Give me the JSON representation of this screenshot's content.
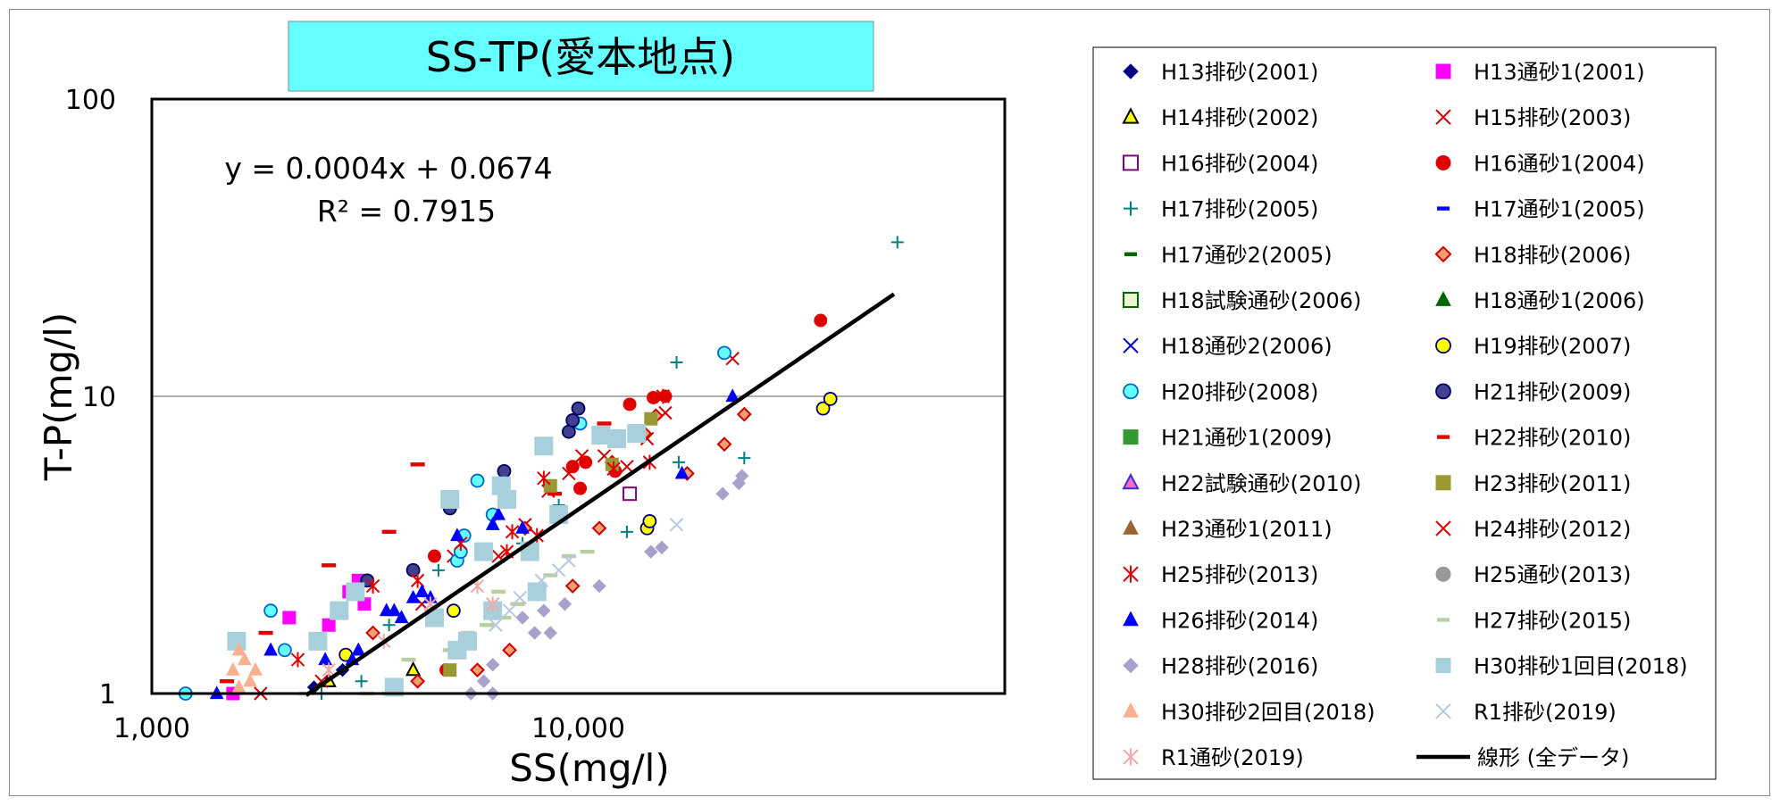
{
  "chart_data": {
    "type": "scatter",
    "title": "SS-TP(愛本地点)",
    "xlabel": "SS(mg/l)",
    "ylabel": "T-P(mg/l)",
    "x_scale": "log",
    "y_scale": "log",
    "xlim": [
      1000,
      100000
    ],
    "ylim": [
      1,
      100
    ],
    "x_ticks": [
      "1,000",
      "10,000"
    ],
    "y_ticks": [
      "1",
      "10",
      "100"
    ],
    "grid": "horizontal",
    "legend_position": "right",
    "trendline": {
      "name": "線形 (全データ)",
      "equation": "y = 0.0004x + 0.0674",
      "r2": "R² = 0.7915",
      "slope": 0.0004,
      "intercept": 0.0674,
      "x_range": [
        2300,
        55000
      ]
    },
    "series": [
      {
        "name": "H13排砂(2001)",
        "marker": "diamond",
        "color": "#000080",
        "points": [
          [
            2400,
            1.05
          ],
          [
            2800,
            1.2
          ]
        ]
      },
      {
        "name": "H13通砂1(2001)",
        "marker": "square",
        "color": "#ff00ff",
        "points": [
          [
            1550,
            1.0
          ],
          [
            2100,
            1.8
          ],
          [
            2600,
            1.7
          ],
          [
            2900,
            2.2
          ],
          [
            3050,
            2.4
          ],
          [
            3150,
            2.0
          ]
        ]
      },
      {
        "name": "H14排砂(2002)",
        "marker": "triangle",
        "color": "#ffff00",
        "stroke": "#000000",
        "points": [
          [
            4100,
            1.2
          ],
          [
            2600,
            1.1
          ]
        ]
      },
      {
        "name": "H15排砂(2003)",
        "marker": "x",
        "color": "#cc0000",
        "points": [
          [
            1800,
            1.0
          ],
          [
            2500,
            1.1
          ],
          [
            4300,
            2.0
          ],
          [
            5100,
            2.9
          ],
          [
            6500,
            2.9
          ],
          [
            7500,
            3.7
          ],
          [
            8500,
            4.8
          ],
          [
            9500,
            5.5
          ],
          [
            10200,
            6.3
          ],
          [
            11500,
            6.3
          ],
          [
            13000,
            5.8
          ],
          [
            14500,
            7.2
          ],
          [
            16000,
            8.8
          ],
          [
            23000,
            13.4
          ]
        ]
      },
      {
        "name": "H16排砂(2004)",
        "marker": "square-open",
        "color": "#800080",
        "points": [
          [
            13200,
            4.7
          ]
        ]
      },
      {
        "name": "H16通砂1(2004)",
        "marker": "circle",
        "color": "#e00000",
        "points": [
          [
            4600,
            2.9
          ],
          [
            4900,
            1.2
          ],
          [
            9700,
            5.8
          ],
          [
            10100,
            4.9
          ],
          [
            10400,
            6.0
          ],
          [
            12200,
            5.6
          ],
          [
            13200,
            9.4
          ],
          [
            15000,
            9.9
          ],
          [
            16000,
            10.0
          ],
          [
            37000,
            18.0
          ]
        ]
      },
      {
        "name": "H17排砂(2005)",
        "marker": "plus",
        "color": "#008080",
        "points": [
          [
            2500,
            1.0
          ],
          [
            3100,
            1.1
          ],
          [
            3600,
            1.7
          ],
          [
            4700,
            2.6
          ],
          [
            7400,
            3.2
          ],
          [
            9000,
            4.3
          ],
          [
            13000,
            3.5
          ],
          [
            13500,
            7.6
          ],
          [
            17000,
            13.0
          ],
          [
            17200,
            6.0
          ],
          [
            24500,
            6.2
          ],
          [
            56000,
            33.0
          ]
        ]
      },
      {
        "name": "H17通砂1(2005)",
        "marker": "dash",
        "color": "#0000ff",
        "points": []
      },
      {
        "name": "H17通砂2(2005)",
        "marker": "dash",
        "color": "#006600",
        "points": []
      },
      {
        "name": "H18排砂(2006)",
        "marker": "diamond-outlined",
        "color": "#f0a070",
        "stroke": "#cc0000",
        "points": [
          [
            3300,
            1.6
          ],
          [
            4200,
            1.1
          ],
          [
            5800,
            1.2
          ],
          [
            6900,
            1.4
          ],
          [
            7500,
            3.6
          ],
          [
            9700,
            2.3
          ],
          [
            11200,
            3.6
          ],
          [
            12000,
            6.0
          ],
          [
            14300,
            7.5
          ],
          [
            15200,
            8.6
          ],
          [
            18000,
            5.5
          ],
          [
            22000,
            6.9
          ],
          [
            24500,
            8.7
          ]
        ]
      },
      {
        "name": "H18試験通砂(2006)",
        "marker": "square-open",
        "color": "#e8f5d0",
        "stroke": "#006600",
        "points": []
      },
      {
        "name": "H18通砂1(2006)",
        "marker": "triangle",
        "color": "#006600",
        "points": []
      },
      {
        "name": "H18通砂2(2006)",
        "marker": "x",
        "color": "#0000cc",
        "points": []
      },
      {
        "name": "H19排砂(2007)",
        "marker": "circle",
        "color": "#ffff00",
        "stroke": "#000080",
        "points": [
          [
            2850,
            1.35
          ],
          [
            5100,
            1.9
          ],
          [
            14500,
            3.6
          ],
          [
            14700,
            3.8
          ],
          [
            37500,
            9.1
          ],
          [
            39000,
            9.8
          ]
        ]
      },
      {
        "name": "H20排砂(2008)",
        "marker": "circle",
        "color": "#66ffff",
        "stroke": "#0066cc",
        "points": [
          [
            1200,
            1.0
          ],
          [
            1900,
            1.9
          ],
          [
            2050,
            1.4
          ],
          [
            5200,
            2.8
          ],
          [
            5300,
            3.0
          ],
          [
            5400,
            3.4
          ],
          [
            5800,
            5.2
          ],
          [
            6300,
            4.0
          ],
          [
            10100,
            8.1
          ],
          [
            22000,
            14.0
          ]
        ]
      },
      {
        "name": "H21排砂(2009)",
        "marker": "circle",
        "color": "#404090",
        "stroke": "#000060",
        "points": [
          [
            3200,
            2.4
          ],
          [
            4100,
            2.6
          ],
          [
            5000,
            4.2
          ],
          [
            6700,
            5.6
          ],
          [
            9500,
            7.6
          ],
          [
            9700,
            8.3
          ],
          [
            10000,
            9.1
          ]
        ]
      },
      {
        "name": "H21通砂1(2009)",
        "marker": "square",
        "color": "#339933",
        "points": []
      },
      {
        "name": "H22排砂(2010)",
        "marker": "dash",
        "color": "#e00000",
        "points": [
          [
            1500,
            1.1
          ],
          [
            1850,
            1.6
          ],
          [
            2600,
            2.7
          ],
          [
            3600,
            3.5
          ],
          [
            4200,
            5.9
          ],
          [
            8800,
            4.7
          ],
          [
            11500,
            8.1
          ]
        ]
      },
      {
        "name": "H22試験通砂(2010)",
        "marker": "triangle",
        "color": "#ff66cc",
        "stroke": "#3333cc",
        "points": []
      },
      {
        "name": "H23排砂(2011)",
        "marker": "square",
        "color": "#999933",
        "points": [
          [
            5000,
            1.2
          ],
          [
            8600,
            5.0
          ],
          [
            12000,
            5.9
          ],
          [
            14800,
            8.4
          ]
        ]
      },
      {
        "name": "H23通砂1(2011)",
        "marker": "triangle",
        "color": "#996633",
        "points": []
      },
      {
        "name": "H24排砂(2012)",
        "marker": "x",
        "color": "#e00000",
        "points": []
      },
      {
        "name": "H25排砂(2013)",
        "marker": "asterisk",
        "color": "#e00000",
        "points": [
          [
            2200,
            1.3
          ],
          [
            3300,
            2.3
          ],
          [
            4200,
            2.4
          ],
          [
            5300,
            3.2
          ],
          [
            6800,
            3.0
          ],
          [
            7000,
            3.5
          ],
          [
            8000,
            3.4
          ],
          [
            8300,
            5.3
          ],
          [
            12100,
            5.7
          ],
          [
            14700,
            6.0
          ],
          [
            15800,
            10.0
          ]
        ]
      },
      {
        "name": "H25通砂(2013)",
        "marker": "circle",
        "color": "#999999",
        "points": []
      },
      {
        "name": "H26排砂(2014)",
        "marker": "triangle",
        "color": "#0000ff",
        "points": [
          [
            1420,
            1.0
          ],
          [
            1900,
            1.4
          ],
          [
            2550,
            1.3
          ],
          [
            2950,
            1.3
          ],
          [
            3050,
            1.4
          ],
          [
            3550,
            1.9
          ],
          [
            3700,
            1.9
          ],
          [
            3850,
            1.8
          ],
          [
            4100,
            2.1
          ],
          [
            4300,
            2.2
          ],
          [
            4500,
            2.1
          ],
          [
            5200,
            3.4
          ],
          [
            6300,
            3.7
          ],
          [
            6500,
            4.0
          ],
          [
            7400,
            3.6
          ],
          [
            17500,
            5.5
          ],
          [
            23000,
            10.0
          ]
        ]
      },
      {
        "name": "H27排砂(2015)",
        "marker": "dash",
        "color": "#b8d0a0",
        "points": [
          [
            2300,
            1.0
          ],
          [
            3200,
            1.0
          ],
          [
            3600,
            1.0
          ],
          [
            4000,
            1.3
          ],
          [
            5000,
            1.4
          ],
          [
            5500,
            1.6
          ],
          [
            6100,
            1.7
          ],
          [
            6700,
            1.8
          ],
          [
            7200,
            2.0
          ],
          [
            8000,
            2.2
          ],
          [
            8600,
            2.5
          ],
          [
            9500,
            2.9
          ],
          [
            10500,
            3.0
          ],
          [
            7600,
            3.2
          ],
          [
            6500,
            2.2
          ]
        ]
      },
      {
        "name": "H28排砂(2016)",
        "marker": "diamond",
        "color": "#aaa0cc",
        "points": [
          [
            5600,
            1.0
          ],
          [
            6000,
            1.1
          ],
          [
            6300,
            1.25
          ],
          [
            6300,
            1.0
          ],
          [
            7400,
            1.8
          ],
          [
            7900,
            1.6
          ],
          [
            8300,
            1.9
          ],
          [
            8600,
            1.6
          ],
          [
            9300,
            2.0
          ],
          [
            11200,
            2.3
          ],
          [
            14800,
            3.0
          ],
          [
            15700,
            3.1
          ],
          [
            21800,
            4.7
          ],
          [
            23800,
            5.1
          ],
          [
            24200,
            5.4
          ]
        ]
      },
      {
        "name": "H30排砂1回目(2018)",
        "marker": "square",
        "color": "#a8d0dc",
        "points": [
          [
            1580,
            1.5
          ],
          [
            2450,
            1.5
          ],
          [
            2750,
            1.9
          ],
          [
            3000,
            2.2
          ],
          [
            3700,
            1.05
          ],
          [
            4600,
            1.8
          ],
          [
            5000,
            4.5
          ],
          [
            5200,
            1.4
          ],
          [
            5500,
            1.5
          ],
          [
            6000,
            3.0
          ],
          [
            6300,
            1.9
          ],
          [
            6600,
            5.0
          ],
          [
            6800,
            4.5
          ],
          [
            7700,
            3.0
          ],
          [
            8000,
            2.2
          ],
          [
            8300,
            6.8
          ],
          [
            9000,
            4.0
          ],
          [
            11300,
            7.4
          ],
          [
            12300,
            7.2
          ],
          [
            13700,
            7.5
          ]
        ]
      },
      {
        "name": "H30排砂2回目(2018)",
        "marker": "triangle",
        "color": "#f8b090",
        "points": [
          [
            1550,
            1.2
          ],
          [
            1600,
            1.4
          ],
          [
            1650,
            1.3
          ],
          [
            1700,
            1.1
          ],
          [
            1750,
            1.2
          ],
          [
            1600,
            1.05
          ]
        ]
      },
      {
        "name": "R1排砂(2019)",
        "marker": "x",
        "color": "#b8c8e0",
        "points": [
          [
            6400,
            1.7
          ],
          [
            6900,
            1.9
          ],
          [
            7300,
            2.1
          ],
          [
            8200,
            2.4
          ],
          [
            9000,
            2.6
          ],
          [
            9500,
            2.8
          ],
          [
            17000,
            3.7
          ]
        ]
      },
      {
        "name": "R1通砂(2019)",
        "marker": "asterisk",
        "color": "#f0a8a8",
        "points": [
          [
            2600,
            1.2
          ],
          [
            3500,
            1.5
          ],
          [
            4500,
            2.0
          ],
          [
            5800,
            2.3
          ],
          [
            6300,
            2.0
          ]
        ]
      }
    ]
  }
}
